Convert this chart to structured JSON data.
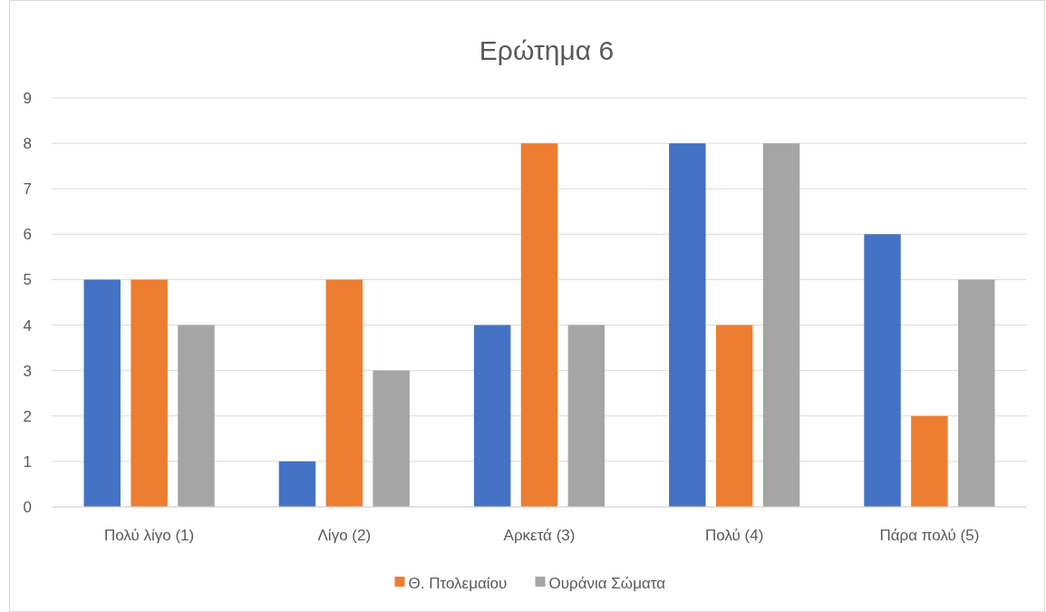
{
  "chart_data": {
    "type": "bar",
    "title": "Ερώτημα 6",
    "categories": [
      "Πολύ λίγο (1)",
      "Λίγο (2)",
      "Αρκετά (3)",
      "Πολύ (4)",
      "Πάρα πολύ (5)"
    ],
    "series": [
      {
        "color": "#4472c4",
        "values": [
          5,
          1,
          4,
          8,
          6
        ]
      },
      {
        "name": "Θ. Πτολεμαίου",
        "color": "#ed7d31",
        "values": [
          5,
          5,
          8,
          4,
          2
        ]
      },
      {
        "name": "Ουράνια Σώματα",
        "color": "#a5a5a5",
        "values": [
          4,
          3,
          4,
          8,
          5
        ]
      }
    ],
    "ylim": [
      0,
      9
    ],
    "yticks": [
      0,
      1,
      2,
      3,
      4,
      5,
      6,
      7,
      8,
      9
    ],
    "grid": "y",
    "legend": "bottom"
  }
}
